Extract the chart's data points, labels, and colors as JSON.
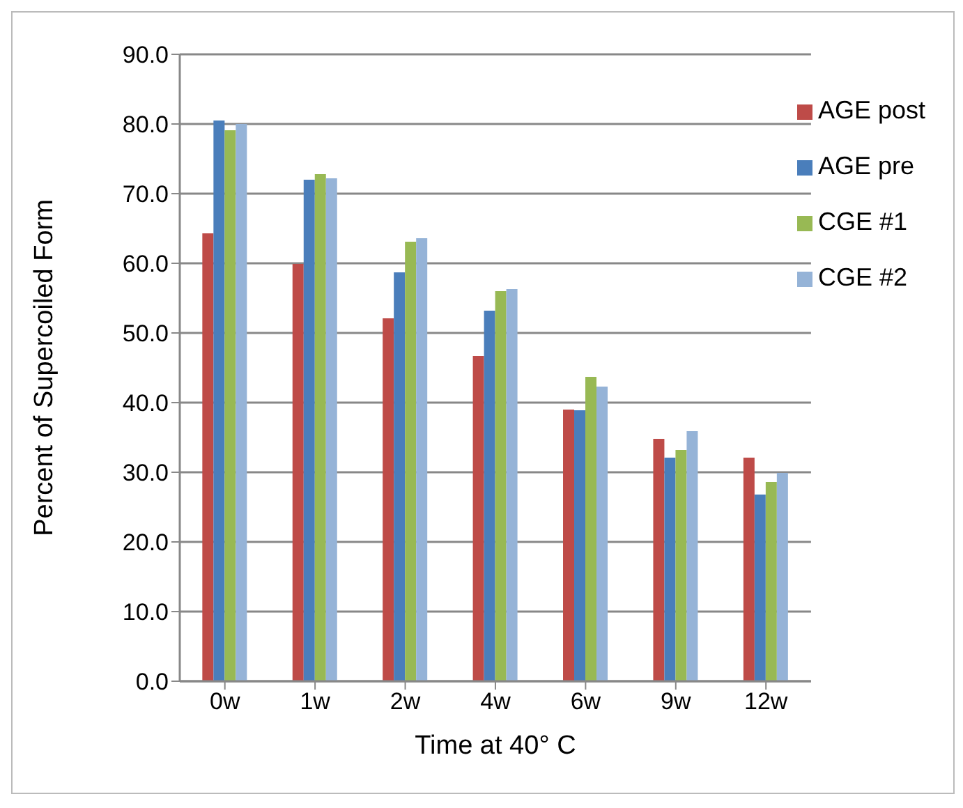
{
  "chart_data": {
    "type": "bar",
    "xlabel": "Time at 40° C",
    "ylabel": "Percent of Supercoiled Form",
    "categories": [
      "0w",
      "1w",
      "2w",
      "4w",
      "6w",
      "9w",
      "12w"
    ],
    "series": [
      {
        "name": "AGE post",
        "color": "#be4b48",
        "values": [
          64.3,
          59.9,
          52.1,
          46.7,
          39.0,
          34.8,
          32.1
        ]
      },
      {
        "name": "AGE pre",
        "color": "#4a7ebb",
        "values": [
          80.5,
          72.0,
          58.7,
          53.2,
          38.9,
          32.1,
          26.8
        ]
      },
      {
        "name": "CGE #1",
        "color": "#98b954",
        "values": [
          79.1,
          72.8,
          63.1,
          56.0,
          43.7,
          33.2,
          28.6
        ]
      },
      {
        "name": "CGE #2",
        "color": "#95b3d7",
        "values": [
          80.0,
          72.2,
          63.6,
          56.3,
          42.3,
          35.9,
          29.9
        ]
      }
    ],
    "ylim": [
      0,
      90
    ],
    "yticks": [
      {
        "value": 0,
        "label": "0.0"
      },
      {
        "value": 10,
        "label": "10.0"
      },
      {
        "value": 20,
        "label": "20.0"
      },
      {
        "value": 30,
        "label": "30.0"
      },
      {
        "value": 40,
        "label": "40.0"
      },
      {
        "value": 50,
        "label": "50.0"
      },
      {
        "value": 60,
        "label": "60.0"
      },
      {
        "value": 70,
        "label": "70.0"
      },
      {
        "value": 80,
        "label": "80.0"
      },
      {
        "value": 90,
        "label": "90.0"
      }
    ],
    "grid": "y",
    "legend": "top right"
  }
}
